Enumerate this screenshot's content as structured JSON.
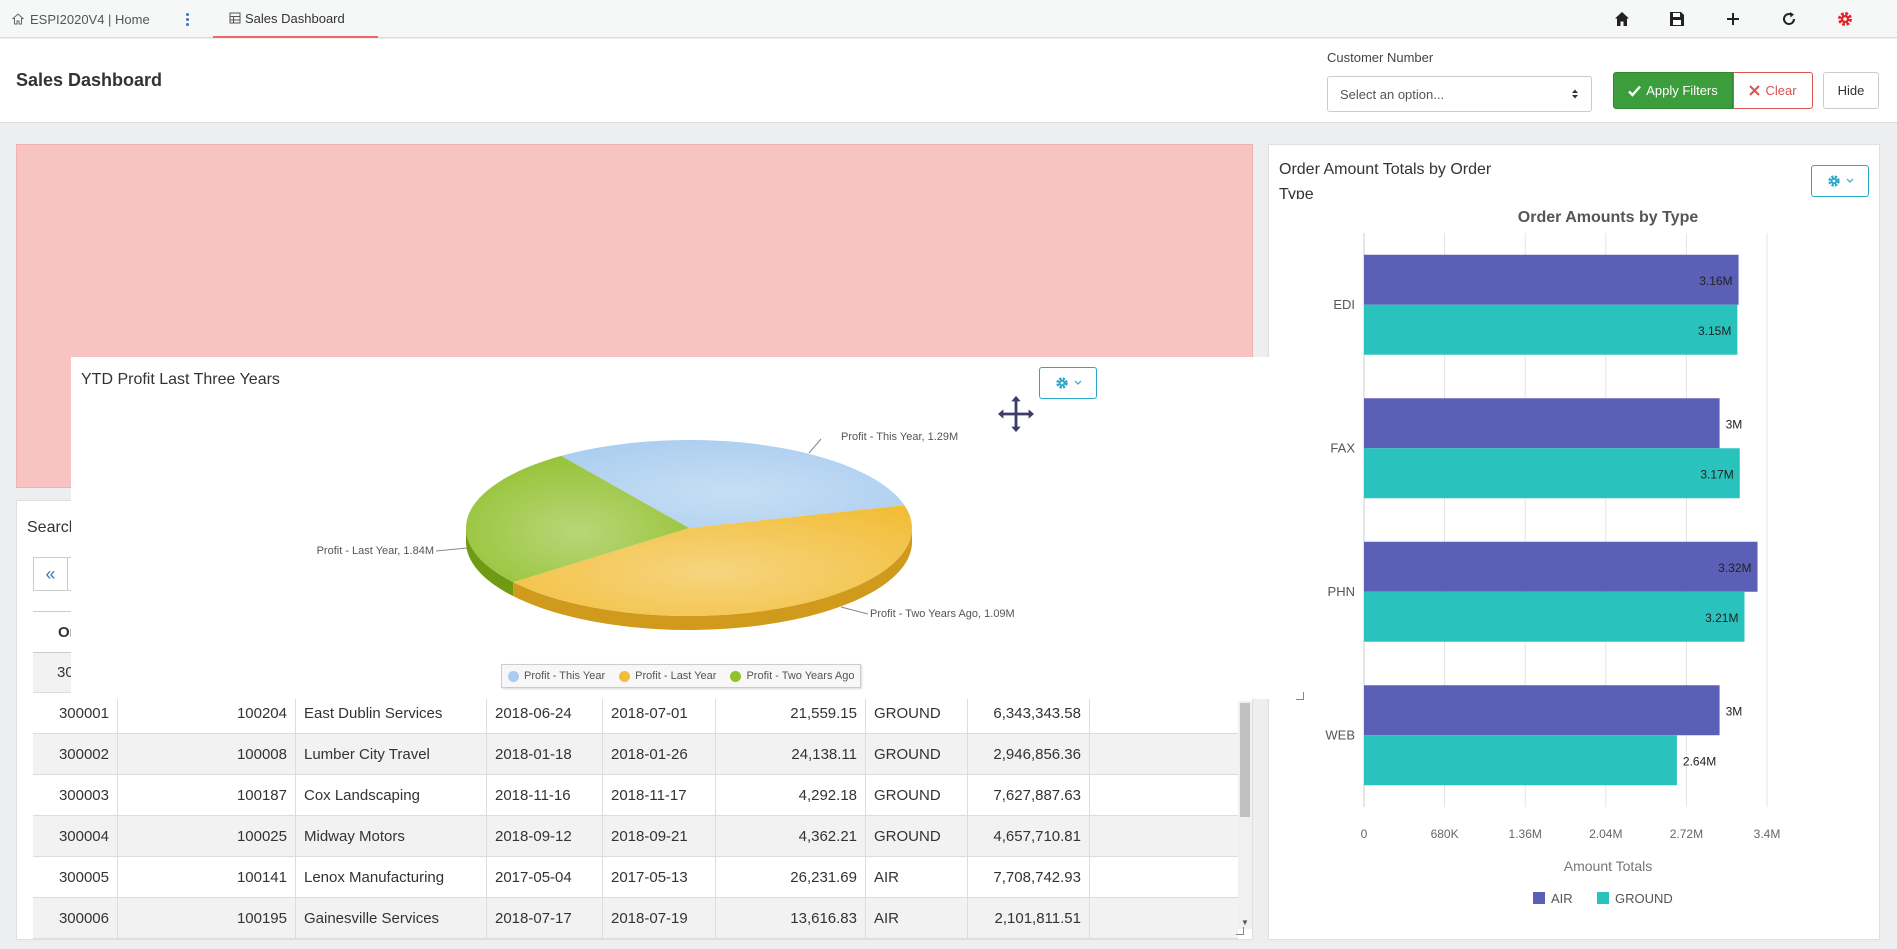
{
  "topbar": {
    "home_tab": "ESPI2020V4 | Home",
    "active_tab": "Sales Dashboard",
    "icons": [
      "home-icon",
      "save-icon",
      "plus-icon",
      "refresh-icon",
      "settings-icon"
    ]
  },
  "header": {
    "title": "Sales Dashboard",
    "customer_label": "Customer Number",
    "customer_select": "Select an option...",
    "apply_label": "Apply Filters",
    "clear_label": "Clear",
    "hide_label": "Hide"
  },
  "table": {
    "search_label": "Search",
    "first_col_header": "Or",
    "partial_row_first": "30",
    "rows": [
      [
        "300001",
        "100204",
        "East Dublin Services",
        "2018-06-24",
        "2018-07-01",
        "21,559.15",
        "GROUND",
        "6,343,343.58"
      ],
      [
        "300002",
        "100008",
        "Lumber City Travel",
        "2018-01-18",
        "2018-01-26",
        "24,138.11",
        "GROUND",
        "2,946,856.36"
      ],
      [
        "300003",
        "100187",
        "Cox Landscaping",
        "2018-11-16",
        "2018-11-17",
        "4,292.18",
        "GROUND",
        "7,627,887.63"
      ],
      [
        "300004",
        "100025",
        "Midway Motors",
        "2018-09-12",
        "2018-09-21",
        "4,362.21",
        "GROUND",
        "4,657,710.81"
      ],
      [
        "300005",
        "100141",
        "Lenox Manufacturing",
        "2017-05-04",
        "2017-05-13",
        "26,231.69",
        "AIR",
        "7,708,742.93"
      ],
      [
        "300006",
        "100195",
        "Gainesville Services",
        "2018-07-17",
        "2018-07-19",
        "13,616.83",
        "AIR",
        "2,101,811.51"
      ]
    ]
  },
  "pie_panel": {
    "title": "YTD Profit Last Three Years"
  },
  "bar_panel": {
    "title": "Order Amount Totals by Order Type"
  },
  "chart_data": [
    {
      "type": "pie",
      "title": "",
      "slices": [
        {
          "name": "Profit - This Year",
          "value": 1.29,
          "label": "Profit - This Year, 1.29M",
          "color": "#a9cdef"
        },
        {
          "name": "Profit - Last Year",
          "value": 1.84,
          "label": "Profit - Last Year, 1.84M",
          "color": "#f2be3a"
        },
        {
          "name": "Profit - Two Years Ago",
          "value": 1.09,
          "label": "Profit - Two Years Ago, 1.09M",
          "color": "#92c02f"
        }
      ],
      "legend": [
        "Profit - This Year",
        "Profit - Last Year",
        "Profit - Two Years Ago"
      ],
      "legend_position": "bottom"
    },
    {
      "type": "bar",
      "orientation": "horizontal",
      "title": "Order Amounts by Type",
      "categories": [
        "EDI",
        "FAX",
        "PHN",
        "WEB"
      ],
      "series": [
        {
          "name": "AIR",
          "values": [
            3.16,
            3.0,
            3.32,
            3.0
          ],
          "labels": [
            "3.16M",
            "3M",
            "3.32M",
            "3M"
          ],
          "color": "#5b5fb5"
        },
        {
          "name": "GROUND",
          "values": [
            3.15,
            3.17,
            3.21,
            2.64
          ],
          "labels": [
            "3.15M",
            "3.17M",
            "3.21M",
            "2.64M"
          ],
          "color": "#2ac2bd"
        }
      ],
      "xlabel": "Amount Totals",
      "x_ticks": [
        "0",
        "680K",
        "1.36M",
        "2.04M",
        "2.72M",
        "3.4M"
      ],
      "xlim": [
        0,
        3.4
      ],
      "grid": true,
      "legend_position": "bottom"
    }
  ]
}
